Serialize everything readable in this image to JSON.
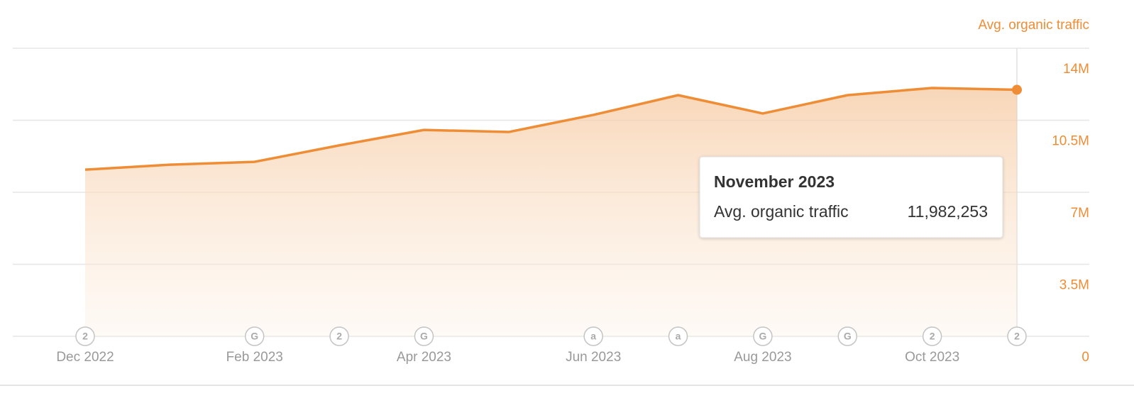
{
  "chart_data": {
    "type": "area",
    "ylabel": "Avg. organic traffic",
    "categories": [
      "Dec 2022",
      null,
      "Feb 2023",
      null,
      "Apr 2023",
      null,
      "Jun 2023",
      null,
      "Aug 2023",
      null,
      "Oct 2023",
      null
    ],
    "annotations": [
      "2",
      null,
      "G",
      "2",
      "G",
      null,
      "a",
      "a",
      "G",
      "G",
      "2",
      "2"
    ],
    "series": [
      {
        "name": "Avg. organic traffic",
        "color": "#ee8d35",
        "values": [
          8100000,
          8340000,
          8480000,
          9280000,
          10030000,
          9930000,
          10760000,
          11720000,
          10830000,
          11720000,
          12070000,
          11982253
        ],
        "value_labels": [
          null,
          null,
          null,
          null,
          null,
          null,
          null,
          null,
          null,
          null,
          null,
          "11,982,253"
        ]
      }
    ],
    "tooltip_title": "November 2023",
    "ylim": [
      0,
      14000000
    ],
    "yticks": [
      0,
      {
        "value": 3500000,
        "label": "3.5M"
      },
      {
        "value": 7000000,
        "label": "7M"
      },
      {
        "value": 10500000,
        "label": "10.5M"
      },
      {
        "value": 14000000,
        "label": "14M"
      }
    ],
    "grid": true
  }
}
